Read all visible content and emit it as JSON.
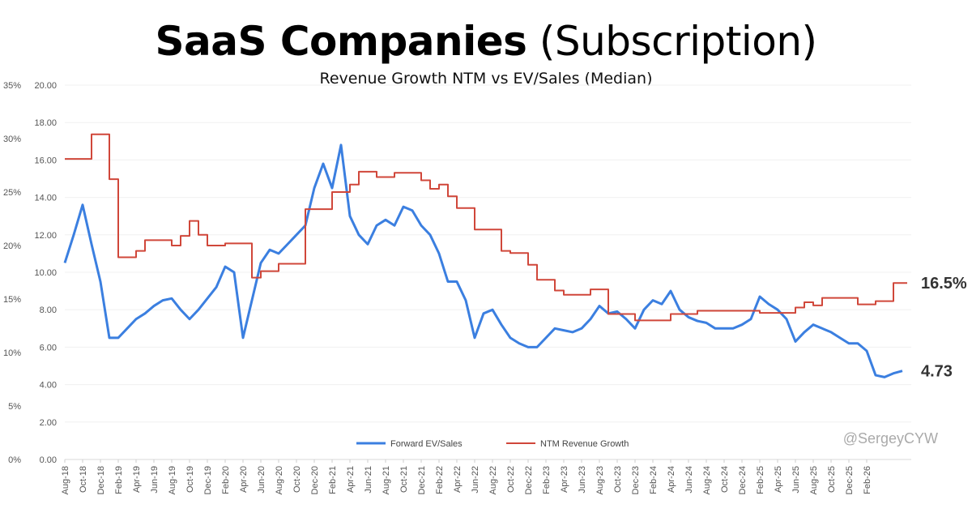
{
  "chart_data": {
    "type": "line",
    "title_bold": "SaaS Companies",
    "title_rest": "(Subscription)",
    "subtitle": "Revenue Growth NTM vs EV/Sales (Median)",
    "x": [
      "Aug-18",
      "Sep-18",
      "Oct-18",
      "Nov-18",
      "Dec-18",
      "Jan-19",
      "Feb-19",
      "Mar-19",
      "Apr-19",
      "May-19",
      "Jun-19",
      "Jul-19",
      "Aug-19",
      "Sep-19",
      "Oct-19",
      "Nov-19",
      "Dec-19",
      "Jan-20",
      "Feb-20",
      "Mar-20",
      "Apr-20",
      "May-20",
      "Jun-20",
      "Jul-20",
      "Aug-20",
      "Sep-20",
      "Oct-20",
      "Nov-20",
      "Dec-20",
      "Jan-21",
      "Feb-21",
      "Mar-21",
      "Apr-21",
      "May-21",
      "Jun-21",
      "Jul-21",
      "Aug-21",
      "Sep-21",
      "Oct-21",
      "Nov-21",
      "Dec-21",
      "Jan-22",
      "Feb-22",
      "Mar-22",
      "Apr-22",
      "May-22",
      "Jun-22",
      "Jul-22",
      "Aug-22",
      "Sep-22",
      "Oct-22",
      "Nov-22",
      "Dec-22",
      "Jan-23",
      "Feb-23",
      "Mar-23",
      "Apr-23",
      "May-23",
      "Jun-23",
      "Jul-23",
      "Aug-23",
      "Sep-23",
      "Oct-23",
      "Nov-23",
      "Dec-23",
      "Jan-24",
      "Feb-24",
      "Mar-24",
      "Apr-24",
      "May-24",
      "Jun-24",
      "Jul-24",
      "Aug-24",
      "Sep-24",
      "Oct-24",
      "Nov-24",
      "Dec-24",
      "Jan-25",
      "Feb-25",
      "Mar-25",
      "Apr-25",
      "May-25",
      "Jun-25",
      "Jul-25",
      "Aug-25",
      "Sep-25",
      "Oct-25",
      "Nov-25",
      "Dec-25",
      "Jan-26",
      "Feb-26",
      "Mar-26",
      "Apr-26",
      "May-26",
      "Jun-26"
    ],
    "xticks": [
      "Aug-18",
      "Oct-18",
      "Dec-18",
      "Feb-19",
      "Apr-19",
      "Jun-19",
      "Aug-19",
      "Oct-19",
      "Dec-19",
      "Feb-20",
      "Apr-20",
      "Jun-20",
      "Aug-20",
      "Oct-20",
      "Dec-20",
      "Feb-21",
      "Apr-21",
      "Jun-21",
      "Aug-21",
      "Oct-21",
      "Dec-21",
      "Feb-22",
      "Apr-22",
      "Jun-22",
      "Aug-22",
      "Oct-22",
      "Dec-22",
      "Feb-23",
      "Apr-23",
      "Jun-23",
      "Aug-23",
      "Oct-23",
      "Dec-23",
      "Feb-24",
      "Apr-24",
      "Jun-24",
      "Aug-24",
      "Oct-24",
      "Dec-24",
      "Feb-25",
      "Apr-25",
      "Jun-25",
      "Aug-25",
      "Oct-25",
      "Dec-25",
      "Feb-26"
    ],
    "y_left_outer": {
      "ticks": [
        "0%",
        "5%",
        "10%",
        "15%",
        "20%",
        "25%",
        "30%",
        "35%"
      ],
      "range": [
        0,
        35
      ],
      "unit": "%"
    },
    "y_left_inner": {
      "ticks": [
        "0.00",
        "2.00",
        "4.00",
        "6.00",
        "8.00",
        "10.00",
        "12.00",
        "14.00",
        "16.00",
        "18.00",
        "20.00"
      ],
      "range": [
        0,
        20
      ]
    },
    "grid": true,
    "legend_position": "bottom",
    "series": [
      {
        "name": "Forward EV/Sales",
        "axis": "inner",
        "color": "#3b7fe0",
        "end_label": "4.73",
        "values": [
          10.5,
          12.0,
          13.6,
          11.5,
          9.5,
          6.5,
          6.5,
          7.0,
          7.5,
          7.8,
          8.2,
          8.5,
          8.6,
          8.0,
          7.5,
          8.0,
          8.6,
          9.2,
          10.3,
          10.0,
          6.5,
          8.5,
          10.5,
          11.2,
          11.0,
          11.5,
          12.0,
          12.5,
          14.5,
          15.8,
          14.5,
          16.8,
          13.0,
          12.0,
          11.5,
          12.5,
          12.8,
          12.5,
          13.5,
          13.3,
          12.5,
          12.0,
          11.0,
          9.5,
          9.5,
          8.5,
          6.5,
          7.8,
          8.0,
          7.2,
          6.5,
          6.2,
          6.0,
          6.0,
          6.5,
          7.0,
          6.9,
          6.8,
          7.0,
          7.5,
          8.2,
          7.8,
          7.9,
          7.5,
          7.0,
          8.0,
          8.5,
          8.3,
          9.0,
          8.0,
          7.6,
          7.4,
          7.3,
          7.0,
          7.0,
          7.0,
          7.2,
          7.5,
          8.7,
          8.3,
          8.0,
          7.5,
          6.3,
          6.8,
          7.2,
          7.0,
          6.8,
          6.5,
          6.2,
          6.2,
          5.8,
          4.5,
          4.4,
          4.6,
          4.73
        ]
      },
      {
        "name": "NTM Revenue Growth",
        "axis": "outer",
        "color": "#d0473a",
        "step": true,
        "end_label": "16.5%",
        "values": [
          28.1,
          28.1,
          28.1,
          30.4,
          30.4,
          26.2,
          18.9,
          18.9,
          19.5,
          20.5,
          20.5,
          20.5,
          20.0,
          20.9,
          22.3,
          21.0,
          20.0,
          20.0,
          20.2,
          20.2,
          20.2,
          17.0,
          17.6,
          17.6,
          18.3,
          18.3,
          18.3,
          23.4,
          23.4,
          23.4,
          25.0,
          25.0,
          25.7,
          26.9,
          26.9,
          26.4,
          26.4,
          26.8,
          26.8,
          26.8,
          26.1,
          25.3,
          25.7,
          24.6,
          23.5,
          23.5,
          21.5,
          21.5,
          21.5,
          19.5,
          19.3,
          19.3,
          18.2,
          16.8,
          16.8,
          15.8,
          15.4,
          15.4,
          15.4,
          15.9,
          15.9,
          13.6,
          13.6,
          13.6,
          13.0,
          13.0,
          13.0,
          13.0,
          13.6,
          13.6,
          13.6,
          13.9,
          13.9,
          13.9,
          13.9,
          13.9,
          13.9,
          13.9,
          13.7,
          13.7,
          13.7,
          13.7,
          14.2,
          14.7,
          14.4,
          15.1,
          15.1,
          15.1,
          15.1,
          14.5,
          14.5,
          14.8,
          14.8,
          16.5,
          16.5
        ]
      }
    ],
    "watermark": "@SergeyCYW"
  }
}
